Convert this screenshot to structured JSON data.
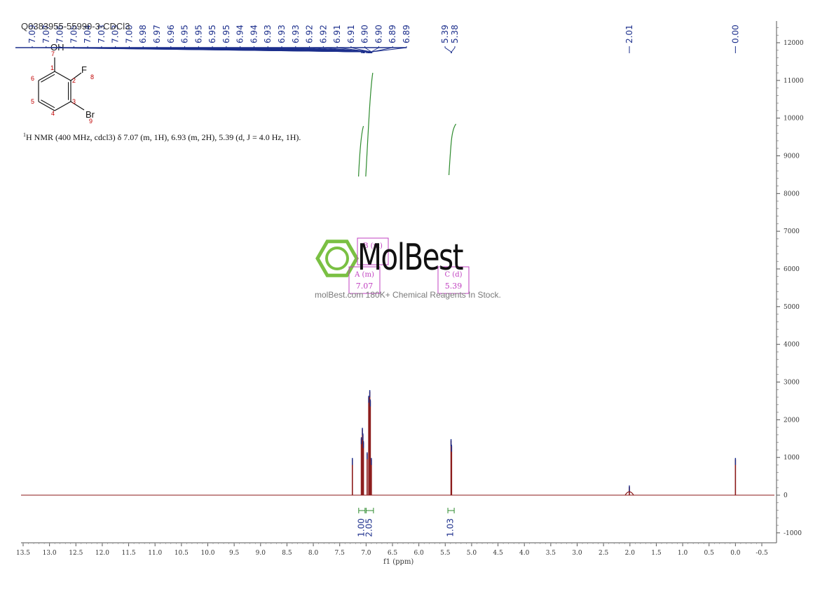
{
  "sample_id": "Q0383955-55990-3-CDCl3",
  "nmr_description": "H NMR (400 MHz, cdcl3) δ 7.07 (m, 1H), 6.93 (m, 2H), 5.39 (d, J = 4.0 Hz, 1H).",
  "nmr_superscript": "1",
  "watermark": {
    "brand": "MolBest",
    "tagline": "molBest.com 180K+ Chemical Reagents In Stock."
  },
  "structure": {
    "atoms": [
      "OH",
      "F",
      "Br"
    ],
    "atom_numbers": [
      "1",
      "2",
      "3",
      "4",
      "5",
      "6",
      "7",
      "8",
      "9"
    ]
  },
  "colors": {
    "spectrum": "#8b1a1a",
    "peak_labels": "#1c2f8c",
    "integral": "#2e8b2e",
    "multiplet_box": "#c040c0",
    "atom_number": "#c00000",
    "watermark_logo": "#7ac043"
  },
  "chart_data": {
    "type": "line",
    "title": "",
    "xlabel": "f1 (ppm)",
    "ylabel": "",
    "xlim": [
      13.5,
      -0.5
    ],
    "ylim": [
      -1000,
      12000
    ],
    "x_ticks": [
      "13.5",
      "13.0",
      "12.5",
      "12.0",
      "11.5",
      "11.0",
      "10.5",
      "10.0",
      "9.5",
      "9.0",
      "8.5",
      "8.0",
      "7.5",
      "7.0",
      "6.5",
      "6.0",
      "5.5",
      "5.0",
      "4.5",
      "4.0",
      "3.5",
      "3.0",
      "2.5",
      "2.0",
      "1.5",
      "1.0",
      "0.5",
      "0.0",
      "-0.5"
    ],
    "y_ticks": [
      "-1000",
      "0",
      "1000",
      "2000",
      "3000",
      "4000",
      "5000",
      "6000",
      "7000",
      "8000",
      "9000",
      "10000",
      "11000",
      "12000"
    ],
    "peak_labels": [
      "7.09",
      "7.07",
      "7.06",
      "7.05",
      "7.04",
      "7.03",
      "7.03",
      "7.00",
      "6.98",
      "6.97",
      "6.96",
      "6.95",
      "6.95",
      "6.95",
      "6.95",
      "6.94",
      "6.94",
      "6.93",
      "6.93",
      "6.93",
      "6.92",
      "6.92",
      "6.91",
      "6.91",
      "6.90",
      "6.90",
      "6.89",
      "6.89",
      "5.39",
      "5.38",
      "2.01",
      "0.00"
    ],
    "peaks": [
      {
        "ppm": 7.26,
        "height": 950
      },
      {
        "ppm": 7.09,
        "height": 1500
      },
      {
        "ppm": 7.07,
        "height": 1750
      },
      {
        "ppm": 7.06,
        "height": 1600
      },
      {
        "ppm": 7.05,
        "height": 1400
      },
      {
        "ppm": 6.98,
        "height": 1100
      },
      {
        "ppm": 6.95,
        "height": 2600
      },
      {
        "ppm": 6.93,
        "height": 2750
      },
      {
        "ppm": 6.92,
        "height": 2500
      },
      {
        "ppm": 6.9,
        "height": 950
      },
      {
        "ppm": 5.39,
        "height": 1450
      },
      {
        "ppm": 5.38,
        "height": 1300
      },
      {
        "ppm": 2.01,
        "height": 220
      },
      {
        "ppm": 0.0,
        "height": 950
      }
    ],
    "integrals": [
      {
        "from": 7.14,
        "to": 7.02,
        "value": "1.00"
      },
      {
        "from": 7.0,
        "to": 6.86,
        "value": "2.05"
      },
      {
        "from": 5.45,
        "to": 5.33,
        "value": "1.03"
      }
    ],
    "multiplets": [
      {
        "label": "A (m)",
        "shift": "7.07"
      },
      {
        "label": "B (m)",
        "shift": ""
      },
      {
        "label": "C (d)",
        "shift": "5.39"
      }
    ]
  }
}
